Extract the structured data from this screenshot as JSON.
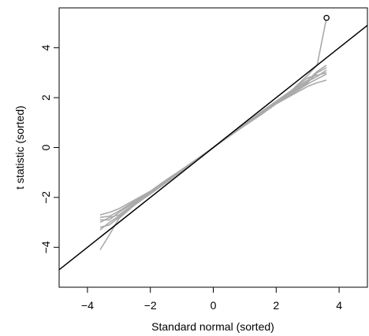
{
  "chart_data": {
    "type": "line",
    "title": "",
    "xlabel": "Standard normal (sorted)",
    "ylabel": "t statistic (sorted)",
    "xlim": [
      -4.9,
      4.9
    ],
    "ylim": [
      -5.6,
      5.6
    ],
    "xticks": [
      -4,
      -2,
      0,
      2,
      4
    ],
    "yticks": [
      -4,
      -2,
      0,
      2,
      4
    ],
    "xtick_labels": [
      "−4",
      "−2",
      "0",
      "2",
      "4"
    ],
    "ytick_labels": [
      "−4",
      "−2",
      "0",
      "2",
      "4"
    ],
    "grid": false,
    "legend": "none",
    "reference_line": {
      "label": "",
      "slope": 1.0,
      "intercept": 0.0,
      "color": "#000000"
    },
    "series_color": "#aaaaaa",
    "series": [
      {
        "x": [
          -3.6,
          -3.3,
          -3.0,
          -2.5,
          -2.0,
          -1.5,
          -1.0,
          -0.5,
          0.0,
          0.5,
          1.0,
          1.5,
          2.0,
          2.5,
          3.0,
          3.3,
          3.6
        ],
        "y": [
          -2.9,
          -2.9,
          -2.6,
          -2.2,
          -1.8,
          -1.35,
          -0.9,
          -0.45,
          0.0,
          0.45,
          0.9,
          1.35,
          1.8,
          2.2,
          2.6,
          3.0,
          3.2
        ]
      },
      {
        "x": [
          -3.6,
          -3.3,
          -3.0,
          -2.5,
          -2.0,
          -1.5,
          -1.0,
          -0.5,
          0.0,
          0.5,
          1.0,
          1.5,
          2.0,
          2.5,
          3.0,
          3.3,
          3.6
        ],
        "y": [
          -2.7,
          -2.6,
          -2.45,
          -2.1,
          -1.75,
          -1.3,
          -0.88,
          -0.44,
          0.0,
          0.44,
          0.88,
          1.3,
          1.75,
          2.1,
          2.45,
          2.6,
          2.7
        ]
      },
      {
        "x": [
          -3.6,
          -3.3,
          -3.0,
          -2.5,
          -2.0,
          -1.5,
          -1.0,
          -0.5,
          0.0,
          0.5,
          1.0,
          1.5,
          2.0,
          2.5,
          3.0,
          3.3,
          3.6
        ],
        "y": [
          -3.2,
          -3.1,
          -2.8,
          -2.3,
          -1.85,
          -1.4,
          -0.93,
          -0.47,
          0.0,
          0.47,
          0.93,
          1.4,
          1.85,
          2.3,
          2.8,
          2.9,
          3.0
        ]
      },
      {
        "x": [
          -3.6,
          -3.3,
          -3.0,
          -2.5,
          -2.0,
          -1.5,
          -1.0,
          -0.5,
          0.0,
          0.5,
          1.0,
          1.5,
          2.0,
          2.5,
          3.0,
          3.3,
          3.6
        ],
        "y": [
          -3.0,
          -2.8,
          -2.7,
          -2.25,
          -1.8,
          -1.37,
          -0.91,
          -0.46,
          0.0,
          0.46,
          0.91,
          1.37,
          1.8,
          2.25,
          2.65,
          2.85,
          3.1
        ]
      },
      {
        "x": [
          -3.6,
          -3.3,
          -3.0,
          -2.5,
          -2.0,
          -1.5,
          -1.0,
          -0.5,
          0.0,
          0.5,
          1.0,
          1.5,
          2.0,
          2.5,
          3.0,
          3.3,
          3.6
        ],
        "y": [
          -3.3,
          -3.0,
          -2.75,
          -2.28,
          -1.83,
          -1.38,
          -0.92,
          -0.46,
          0.0,
          0.46,
          0.92,
          1.38,
          1.83,
          2.28,
          2.7,
          3.05,
          3.3
        ]
      },
      {
        "x": [
          -3.6,
          -3.3,
          -3.0,
          -2.5,
          -2.0,
          -1.5,
          -1.0,
          -0.5,
          0.0,
          0.5,
          1.0,
          1.5,
          2.0,
          2.5,
          3.0,
          3.3,
          3.6
        ],
        "y": [
          -2.8,
          -2.75,
          -2.55,
          -2.15,
          -1.77,
          -1.32,
          -0.89,
          -0.45,
          0.0,
          0.45,
          0.89,
          1.32,
          1.77,
          2.15,
          2.55,
          2.75,
          2.95
        ]
      },
      {
        "x": [
          -3.6,
          -3.3,
          -3.0,
          -2.5,
          -2.0,
          -1.5,
          -1.0,
          -0.5,
          0.0,
          0.5,
          1.0,
          1.5,
          2.0,
          2.5,
          3.0,
          3.3,
          3.6
        ],
        "y": [
          -4.1,
          -3.5,
          -2.85,
          -2.3,
          -1.86,
          -1.41,
          -0.94,
          -0.47,
          0.0,
          0.47,
          0.94,
          1.41,
          1.86,
          2.3,
          2.9,
          3.3,
          5.2
        ]
      }
    ],
    "highlight_point": {
      "x": 3.6,
      "y": 5.2
    }
  }
}
